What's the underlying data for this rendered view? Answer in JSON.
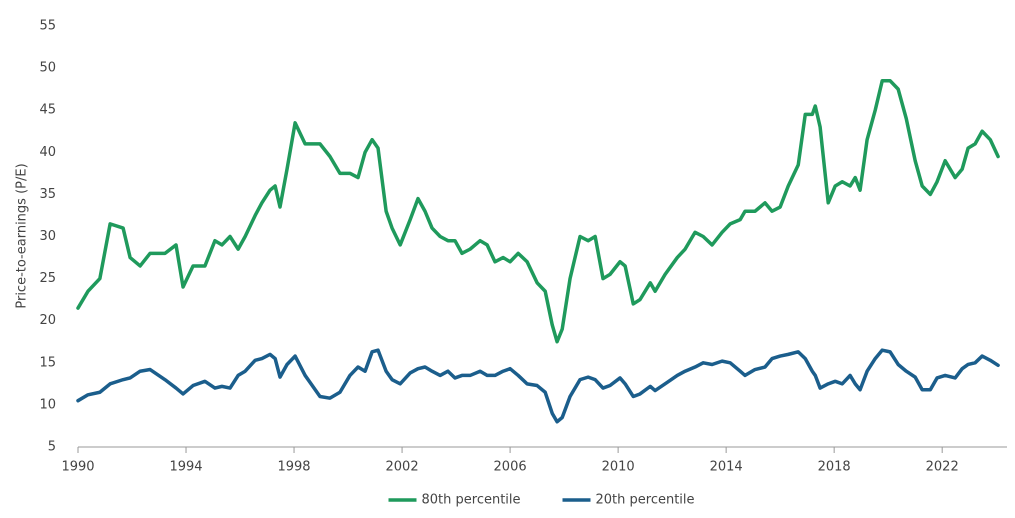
{
  "chart_data": {
    "type": "line",
    "y_label": "Price-to-earnings (P/E)",
    "xlim": [
      1990,
      2024.4
    ],
    "xticks": [
      1990,
      1994,
      1998,
      2002,
      2006,
      2010,
      2014,
      2018,
      2022
    ],
    "ylim": [
      5,
      55
    ],
    "yticks": [
      5,
      10,
      15,
      20,
      25,
      30,
      35,
      40,
      45,
      50,
      55
    ],
    "grid": false,
    "legend": "bottom",
    "x": [
      1990,
      1990.37,
      1990.81,
      1991.19,
      1991.67,
      1991.93,
      1992.3,
      1992.67,
      1993.22,
      1993.63,
      1993.89,
      1994.26,
      1994.7,
      1995.07,
      1995.33,
      1995.63,
      1995.93,
      1996.19,
      1996.56,
      1996.81,
      1997.11,
      1997.3,
      1997.48,
      1997.74,
      1998.04,
      1998.41,
      1998.96,
      1999.33,
      1999.7,
      2000.07,
      2000.37,
      2000.63,
      2000.89,
      2001.11,
      2001.41,
      2001.63,
      2001.93,
      2002.3,
      2002.59,
      2002.85,
      2003.11,
      2003.41,
      2003.7,
      2003.96,
      2004.22,
      2004.52,
      2004.89,
      2005.15,
      2005.44,
      2005.74,
      2006,
      2006.3,
      2006.63,
      2007,
      2007.3,
      2007.56,
      2007.74,
      2007.93,
      2008.22,
      2008.59,
      2008.89,
      2009.15,
      2009.44,
      2009.7,
      2010.07,
      2010.26,
      2010.56,
      2010.81,
      2011.19,
      2011.37,
      2011.74,
      2012.19,
      2012.48,
      2012.85,
      2013.15,
      2013.48,
      2013.85,
      2014.15,
      2014.52,
      2014.7,
      2015.07,
      2015.44,
      2015.7,
      2016,
      2016.3,
      2016.67,
      2016.93,
      2017.19,
      2017.3,
      2017.48,
      2017.78,
      2018.04,
      2018.3,
      2018.59,
      2018.78,
      2018.96,
      2019.22,
      2019.52,
      2019.78,
      2020.07,
      2020.37,
      2020.67,
      2021,
      2021.26,
      2021.56,
      2021.81,
      2022.11,
      2022.48,
      2022.74,
      2022.96,
      2023.22,
      2023.48,
      2023.78,
      2024.07
    ],
    "series": [
      {
        "name": "80th percentile",
        "color": "#1f9a5c",
        "values": [
          21.5,
          23.5,
          25,
          31.5,
          31,
          27.5,
          26.5,
          28,
          28,
          29,
          24,
          26.5,
          26.5,
          29.5,
          29,
          30,
          28.5,
          30,
          32.5,
          34,
          35.5,
          36,
          33.5,
          38,
          43.5,
          41,
          41,
          39.5,
          37.5,
          37.5,
          37,
          40,
          41.5,
          40.5,
          33,
          31,
          29,
          32,
          34.5,
          33,
          31,
          30,
          29.5,
          29.5,
          28,
          28.5,
          29.5,
          29,
          27,
          27.5,
          27,
          28,
          27,
          24.5,
          23.5,
          19.5,
          17.5,
          19,
          25,
          30,
          29.5,
          30,
          25,
          25.5,
          27,
          26.5,
          22,
          22.5,
          24.5,
          23.5,
          25.5,
          27.5,
          28.5,
          30.5,
          30,
          29,
          30.5,
          31.5,
          32,
          33,
          33,
          34,
          33,
          33.5,
          36,
          38.5,
          44.5,
          44.5,
          45.5,
          43,
          34,
          36,
          36.5,
          36,
          37,
          35.5,
          41.5,
          45,
          48.5,
          48.5,
          47.5,
          44,
          39,
          36,
          35,
          36.5,
          39,
          37,
          38,
          40.5,
          41,
          42.5,
          41.5,
          39.5
        ]
      },
      {
        "name": "20th percentile",
        "color": "#1b5e8c",
        "values": [
          10.5,
          11.2,
          11.5,
          12.5,
          13,
          13.2,
          14,
          14.2,
          13,
          12,
          11.3,
          12.3,
          12.8,
          12,
          12.2,
          12,
          13.5,
          14,
          15.3,
          15.5,
          16,
          15.5,
          13.3,
          14.8,
          15.8,
          13.5,
          11,
          10.8,
          11.5,
          13.5,
          14.5,
          14,
          16.3,
          16.5,
          14,
          13,
          12.5,
          13.8,
          14.3,
          14.5,
          14,
          13.5,
          14,
          13.2,
          13.5,
          13.5,
          14,
          13.5,
          13.5,
          14,
          14.3,
          13.5,
          12.5,
          12.3,
          11.5,
          9,
          8,
          8.5,
          11,
          13,
          13.3,
          13,
          12,
          12.3,
          13.2,
          12.5,
          11,
          11.3,
          12.2,
          11.7,
          12.5,
          13.5,
          14,
          14.5,
          15,
          14.8,
          15.2,
          15,
          14,
          13.5,
          14.2,
          14.5,
          15.5,
          15.8,
          16,
          16.3,
          15.5,
          14,
          13.5,
          12,
          12.5,
          12.8,
          12.5,
          13.5,
          12.5,
          11.8,
          14,
          15.5,
          16.5,
          16.3,
          14.8,
          14,
          13.3,
          11.8,
          11.8,
          13.2,
          13.5,
          13.2,
          14.3,
          14.8,
          15,
          15.8,
          15.3,
          14.7
        ]
      }
    ]
  }
}
